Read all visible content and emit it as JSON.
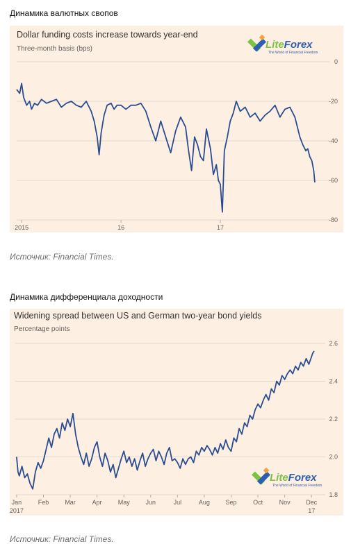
{
  "sections": [
    {
      "heading": "Динамика валютных свопов",
      "source": "Источник: Financial Times."
    },
    {
      "heading": "Динамика дифференциала доходности",
      "source": "Источник: Financial Times."
    }
  ],
  "logo": {
    "name": "LiteForex",
    "tagline": "The World of Financial Freedom",
    "colors": {
      "green": "#7cc243",
      "blue": "#2d5fb0",
      "orange": "#f2a23a"
    }
  },
  "colors": {
    "panel_bg": "#fdf0e3",
    "line": "#2b4c91",
    "grid": "#e3d8cc"
  },
  "chart_data": [
    {
      "type": "line",
      "title": "Dollar funding costs increase towards year-end",
      "subtitle": "Three-month basis (bps)",
      "ylim": [
        -80,
        0
      ],
      "yticks": [
        0,
        -20,
        -40,
        -60,
        -80
      ],
      "ytick_labels": [
        "0",
        "-20",
        "-40",
        "-60",
        "-80"
      ],
      "x_tick_labels": [
        "2015",
        "16",
        "17"
      ],
      "x_tick_positions": [
        2015.0,
        2016.0,
        2017.0
      ],
      "xlim": [
        2014.95,
        2018.0
      ],
      "grid": true,
      "series": [
        {
          "x": [
            2014.95,
            2014.98,
            2015.0,
            2015.02,
            2015.05,
            2015.08,
            2015.1,
            2015.13,
            2015.16,
            2015.2,
            2015.25,
            2015.3,
            2015.35,
            2015.4,
            2015.45,
            2015.5,
            2015.55,
            2015.6,
            2015.65,
            2015.7,
            2015.73,
            2015.76,
            2015.78,
            2015.8,
            2015.83,
            2015.86,
            2015.9,
            2015.93,
            2015.96,
            2016.0,
            2016.05,
            2016.1,
            2016.15,
            2016.2,
            2016.25,
            2016.3,
            2016.35,
            2016.4,
            2016.45,
            2016.5,
            2016.55,
            2016.6,
            2016.65,
            2016.68,
            2016.71,
            2016.74,
            2016.77,
            2016.8,
            2016.83,
            2016.86,
            2016.9,
            2016.93,
            2016.96,
            2016.98,
            2017.0,
            2017.02,
            2017.04,
            2017.07,
            2017.1,
            2017.13,
            2017.16,
            2017.2,
            2017.25,
            2017.3,
            2017.35,
            2017.4,
            2017.45,
            2017.5,
            2017.55,
            2017.6,
            2017.65,
            2017.7,
            2017.75,
            2017.8,
            2017.83,
            2017.86,
            2017.88,
            2017.9,
            2017.92,
            2017.94,
            2017.95
          ],
          "y": [
            -14,
            -16,
            -11,
            -18,
            -22,
            -20,
            -24,
            -21,
            -22,
            -19,
            -21,
            -20,
            -19,
            -23,
            -21,
            -20,
            -22,
            -23,
            -20,
            -25,
            -30,
            -38,
            -47,
            -36,
            -27,
            -22,
            -21,
            -24,
            -22,
            -22,
            -24,
            -22,
            -22,
            -21,
            -25,
            -33,
            -40,
            -30,
            -38,
            -46,
            -35,
            -28,
            -33,
            -45,
            -55,
            -38,
            -42,
            -48,
            -50,
            -34,
            -44,
            -57,
            -52,
            -60,
            -62,
            -76,
            -45,
            -38,
            -30,
            -26,
            -20,
            -25,
            -23,
            -28,
            -26,
            -30,
            -27,
            -25,
            -22,
            -28,
            -24,
            -23,
            -28,
            -38,
            -42,
            -45,
            -44,
            -48,
            -50,
            -55,
            -61
          ]
        }
      ]
    },
    {
      "type": "line",
      "title": "Widening spread between US and German two-year bond yields",
      "subtitle": "Percentage points",
      "ylim": [
        1.8,
        2.6
      ],
      "yticks": [
        1.8,
        2.0,
        2.2,
        2.4,
        2.6
      ],
      "ytick_labels": [
        "1.8",
        "2.0",
        "2.2",
        "2.4",
        "2.6"
      ],
      "x_tick_labels": [
        "Jan",
        "Feb",
        "Mar",
        "Apr",
        "May",
        "Jun",
        "Jul",
        "Aug",
        "Sep",
        "Oct",
        "Nov",
        "Dec"
      ],
      "x_tick_positions": [
        0,
        1,
        2,
        3,
        4,
        5,
        6,
        7,
        8,
        9,
        10,
        11
      ],
      "x_sublabels": [
        {
          "at": 0,
          "text": "2017"
        },
        {
          "at": 11,
          "text": "17"
        }
      ],
      "xlim": [
        -0.05,
        11.15
      ],
      "grid": true,
      "series": [
        {
          "x": [
            0.0,
            0.05,
            0.1,
            0.2,
            0.3,
            0.4,
            0.5,
            0.6,
            0.7,
            0.8,
            0.9,
            1.0,
            1.1,
            1.2,
            1.3,
            1.4,
            1.5,
            1.6,
            1.7,
            1.8,
            1.9,
            2.0,
            2.1,
            2.2,
            2.3,
            2.4,
            2.5,
            2.6,
            2.7,
            2.8,
            2.9,
            3.0,
            3.1,
            3.2,
            3.3,
            3.4,
            3.5,
            3.6,
            3.7,
            3.8,
            3.9,
            4.0,
            4.1,
            4.2,
            4.3,
            4.4,
            4.5,
            4.6,
            4.7,
            4.8,
            4.9,
            5.0,
            5.1,
            5.2,
            5.3,
            5.4,
            5.5,
            5.6,
            5.7,
            5.8,
            5.9,
            6.0,
            6.1,
            6.2,
            6.3,
            6.4,
            6.5,
            6.6,
            6.7,
            6.8,
            6.9,
            7.0,
            7.1,
            7.2,
            7.3,
            7.4,
            7.5,
            7.6,
            7.7,
            7.8,
            7.9,
            8.0,
            8.1,
            8.2,
            8.3,
            8.4,
            8.5,
            8.6,
            8.7,
            8.8,
            8.9,
            9.0,
            9.1,
            9.2,
            9.3,
            9.4,
            9.5,
            9.6,
            9.7,
            9.8,
            9.9,
            10.0,
            10.1,
            10.2,
            10.3,
            10.4,
            10.5,
            10.6,
            10.7,
            10.8,
            10.9,
            11.0,
            11.05,
            11.1
          ],
          "y": [
            2.0,
            1.92,
            1.9,
            1.95,
            1.89,
            1.91,
            1.86,
            1.83,
            1.92,
            1.97,
            1.94,
            1.98,
            2.04,
            2.1,
            2.05,
            2.12,
            2.15,
            2.1,
            2.18,
            2.14,
            2.2,
            2.16,
            2.23,
            2.12,
            2.05,
            2.0,
            1.96,
            2.02,
            1.95,
            1.99,
            2.05,
            2.08,
            2.0,
            1.95,
            2.02,
            1.98,
            1.92,
            1.96,
            1.89,
            1.94,
            1.99,
            2.03,
            1.97,
            2.0,
            1.95,
            1.99,
            1.93,
            1.98,
            2.02,
            1.95,
            1.99,
            2.02,
            2.04,
            1.98,
            2.03,
            2.0,
            1.96,
            2.02,
            2.05,
            1.98,
            1.99,
            1.97,
            1.94,
            1.99,
            1.96,
            1.99,
            2.0,
            1.97,
            2.03,
            2.01,
            2.05,
            2.03,
            2.06,
            2.04,
            2.01,
            2.05,
            2.02,
            2.07,
            2.04,
            2.09,
            2.05,
            2.03,
            2.1,
            2.08,
            2.15,
            2.12,
            2.18,
            2.16,
            2.22,
            2.2,
            2.25,
            2.28,
            2.26,
            2.3,
            2.33,
            2.3,
            2.36,
            2.34,
            2.4,
            2.38,
            2.43,
            2.41,
            2.44,
            2.46,
            2.44,
            2.48,
            2.46,
            2.5,
            2.48,
            2.52,
            2.49,
            2.53,
            2.55,
            2.56
          ]
        }
      ]
    }
  ]
}
